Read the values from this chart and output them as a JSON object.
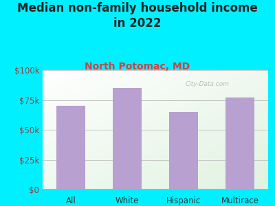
{
  "title": "Median non-family household income\nin 2022",
  "subtitle": "North Potomac, MD",
  "categories": [
    "All",
    "White",
    "Hispanic",
    "Multirace"
  ],
  "values": [
    70000,
    85000,
    65000,
    77000
  ],
  "bar_color": "#b8a0d0",
  "background_color": "#00f0ff",
  "title_color": "#222222",
  "subtitle_color": "#cc4444",
  "ytick_color": "#884444",
  "xtick_color": "#333333",
  "ylim": [
    0,
    100000
  ],
  "yticks": [
    0,
    25000,
    50000,
    75000,
    100000
  ],
  "ytick_labels": [
    "$0",
    "$25k",
    "$50k",
    "$75k",
    "$100k"
  ],
  "watermark": "City-Data.com",
  "title_fontsize": 12,
  "subtitle_fontsize": 10,
  "tick_fontsize": 8.5
}
